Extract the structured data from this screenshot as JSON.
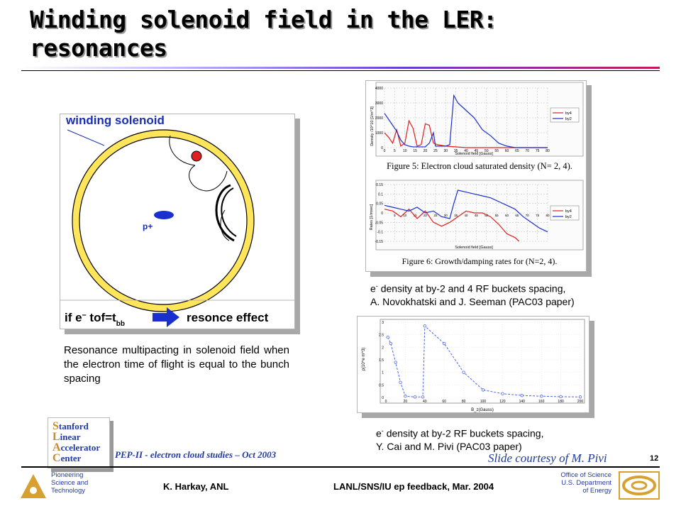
{
  "slide": {
    "title": "Winding solenoid field in the LER: resonances",
    "title_line1": "Winding solenoid field in the LER:",
    "title_line2": "resonances",
    "page_number": "12"
  },
  "left_diagram": {
    "winding_label": "winding solenoid",
    "proton_label": "p+",
    "formula_if": "if e",
    "formula_minus": "–",
    "formula_tof": " tof",
    "formula_eq": "=t",
    "formula_sub": "bb",
    "formula_effect": "resonce effect",
    "caption": "Resonance multipacting in solenoid field when the electron time of flight is equal to the bunch spacing"
  },
  "top_right": {
    "fig5_caption": "Figure 5: Electron cloud saturated density (N= 2, 4).",
    "fig5_ylabel": "Density /10^10 [1/m^3]",
    "fig5_xlabel": "Solenoid field [Gauss]",
    "fig5_yticks": [
      "4000",
      "3000",
      "2000",
      "1000",
      "0"
    ],
    "fig5_xticks": [
      "0",
      "5",
      "10",
      "15",
      "20",
      "25",
      "30",
      "35",
      "40",
      "45",
      "50",
      "55",
      "60",
      "65",
      "70",
      "75",
      "80"
    ],
    "fig6_caption": "Figure 6: Growth/damping rates for (N=2, 4).",
    "fig6_ylabel": "Rates [1/msec]",
    "fig6_xlabel": "Solenoid field [Gauss]",
    "fig6_yticks": [
      "0.15",
      "0.1",
      "0.05",
      "0",
      "-0.05",
      "-0.1",
      "-0.15"
    ],
    "fig6_xticks": [
      "5",
      "10",
      "15",
      "20",
      "25",
      "30",
      "35",
      "40",
      "45",
      "50",
      "55",
      "60",
      "65",
      "70",
      "75",
      "80"
    ],
    "legend": [
      "by4",
      "by2"
    ],
    "caption_line1": "density at by-2 and 4 RF buckets spacing,",
    "caption_line2": "A. Novokhatski and J. Seeman (PAC03 paper)",
    "caption_prefix": "e",
    "caption_sup": "-"
  },
  "bottom_right": {
    "ylabel": "ρ(10^e m^3)",
    "xlabel": "B_z(Gauss)",
    "yticks": [
      "3",
      "2.5",
      "2",
      "1.5",
      "1",
      "0.5",
      "0"
    ],
    "xticks": [
      "0",
      "20",
      "40",
      "60",
      "80",
      "100",
      "120",
      "140",
      "160",
      "180",
      "200"
    ],
    "caption_prefix": "e",
    "caption_sup": "-",
    "caption_line1": "density at by-2 RF buckets spacing,",
    "caption_line2": "Y. Cai and M. Pivi (PAC03 paper)"
  },
  "footer": {
    "slac_line1": "tanford",
    "slac_line2": "inear",
    "slac_line3": "ccelerator",
    "slac_line4": "enter",
    "slac_caps": [
      "S",
      "L",
      "A",
      "C"
    ],
    "pep_text": "PEP-II  -  electron cloud studies – Oct 2003",
    "courtesy": "Slide courtesy of M. Pivi",
    "pioneering_1": "Pioneering",
    "pioneering_2": "Science and",
    "pioneering_3": "Technology",
    "author": "K. Harkay, ANL",
    "meeting": "LANL/SNS/IU ep feedback, Mar. 2004",
    "office_1": "Office of Science",
    "office_2": "U.S. Department",
    "office_3": "of Energy"
  },
  "colors": {
    "accent_red": "#e02020",
    "accent_blue": "#1a2fd0",
    "ring_yellow": "#ffe55a",
    "logo_gold": "#d8a030",
    "footer_blue": "#1f3aa0"
  }
}
